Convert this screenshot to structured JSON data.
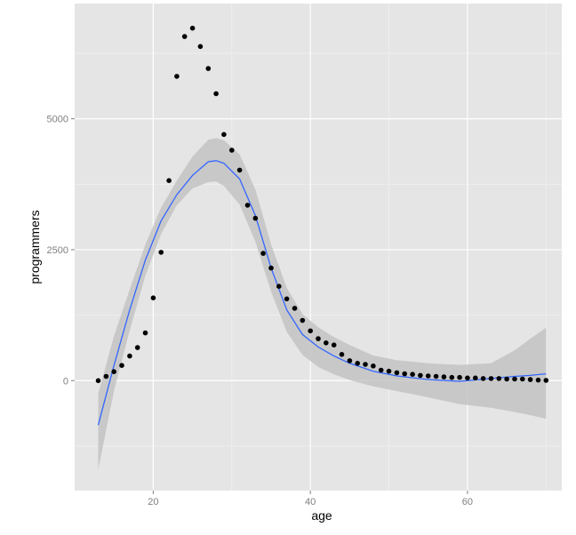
{
  "chart_data": {
    "type": "scatter",
    "xlabel": "age",
    "ylabel": "programmers",
    "xlim": [
      10,
      72
    ],
    "ylim": [
      -2100,
      7200
    ],
    "x_ticks": [
      20,
      40,
      60
    ],
    "y_ticks": [
      0,
      2500,
      5000
    ],
    "x_tick_labels": [
      "20",
      "40",
      "60"
    ],
    "y_tick_labels": [
      "0",
      "2500",
      "5000"
    ],
    "grid": true,
    "points": {
      "x": [
        13,
        14,
        15,
        16,
        17,
        18,
        19,
        20,
        21,
        22,
        23,
        24,
        25,
        26,
        27,
        28,
        29,
        30,
        31,
        32,
        33,
        34,
        35,
        36,
        37,
        38,
        39,
        40,
        41,
        42,
        43,
        44,
        45,
        46,
        47,
        48,
        49,
        50,
        51,
        52,
        53,
        54,
        55,
        56,
        57,
        58,
        59,
        60,
        61,
        62,
        63,
        64,
        65,
        66,
        67,
        68,
        69,
        70
      ],
      "y": [
        0,
        80,
        170,
        290,
        470,
        630,
        910,
        1580,
        2450,
        3820,
        5810,
        6570,
        6730,
        6380,
        5960,
        5480,
        4700,
        4400,
        4020,
        3350,
        3100,
        2430,
        2150,
        1800,
        1560,
        1380,
        1150,
        950,
        800,
        720,
        680,
        500,
        380,
        330,
        310,
        280,
        200,
        180,
        150,
        130,
        120,
        100,
        90,
        80,
        70,
        60,
        60,
        50,
        50,
        40,
        40,
        40,
        30,
        30,
        30,
        20,
        10,
        5
      ]
    },
    "smooth": {
      "x": [
        13,
        15,
        17,
        19,
        21,
        23,
        25,
        27,
        28,
        29,
        31,
        33,
        35,
        37,
        39,
        41,
        43,
        45,
        48,
        51,
        55,
        59,
        63,
        66,
        68,
        70
      ],
      "y": [
        -850,
        290,
        1350,
        2300,
        3050,
        3550,
        3920,
        4180,
        4200,
        4150,
        3850,
        3150,
        2150,
        1350,
        880,
        640,
        470,
        330,
        180,
        90,
        20,
        -15,
        40,
        80,
        100,
        130
      ],
      "lower": [
        -1700,
        -200,
        960,
        2000,
        2800,
        3350,
        3670,
        3790,
        3800,
        3720,
        3360,
        2650,
        1700,
        930,
        490,
        260,
        120,
        10,
        -110,
        -200,
        -320,
        -450,
        -520,
        -600,
        -660,
        -730
      ],
      "upper": [
        -250,
        850,
        1740,
        2600,
        3300,
        3820,
        4280,
        4600,
        4630,
        4590,
        4320,
        3650,
        2600,
        1770,
        1270,
        1020,
        830,
        680,
        480,
        390,
        330,
        300,
        330,
        580,
        800,
        1010
      ]
    },
    "colors": {
      "panel": "#e5e5e5",
      "grid_major": "#ffffff",
      "grid_minor": "#f0f0f0",
      "point": "#000000",
      "line": "#3366ff",
      "ribbon": "#bdbdbd"
    }
  }
}
